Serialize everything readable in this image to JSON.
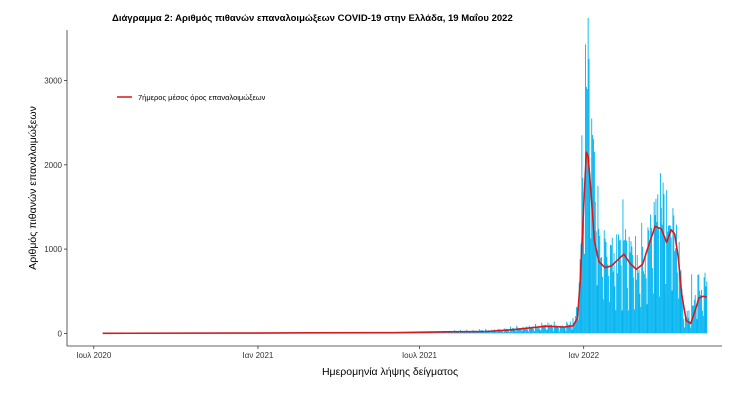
{
  "chart_data": {
    "type": "bar",
    "title": "Διάγραμμα 2: Αριθμός πιθανών επαναλοιμώξεων COVID-19 στην Ελλάδα, 19 Μαΐου 2022",
    "xlabel": "Ημερομηνία λήψης δείγματος",
    "ylabel": "Αριθμός πιθανών επαναλοιμώξεων",
    "x_ticks": [
      {
        "date": "2020-07-01",
        "label": "Ιουλ 2020"
      },
      {
        "date": "2021-01-01",
        "label": "Ιαν 2021"
      },
      {
        "date": "2021-07-01",
        "label": "Ιουλ 2021"
      },
      {
        "date": "2022-01-01",
        "label": "Ιαν 2022"
      }
    ],
    "y_ticks": [
      0,
      1000,
      2000,
      3000
    ],
    "xlim": [
      "2020-06-01",
      "2022-06-05"
    ],
    "ylim": [
      -150,
      3600
    ],
    "grid": false,
    "legend": {
      "position": "top-left",
      "entries": [
        {
          "label": "7ήμερος μέσος όρος επαναλοιμώξεων",
          "color": "#d7191c"
        }
      ]
    },
    "series": [
      {
        "mark": "bar",
        "color": "#00b4f0",
        "x_start": "2020-07-11",
        "x_end": "2022-05-19",
        "anchors": [
          [
            "2020-07-11",
            1
          ],
          [
            "2020-10-01",
            3
          ],
          [
            "2021-01-01",
            5
          ],
          [
            "2021-03-15",
            10
          ],
          [
            "2021-05-01",
            8
          ],
          [
            "2021-07-01",
            12
          ],
          [
            "2021-08-15",
            25
          ],
          [
            "2021-10-01",
            40
          ],
          [
            "2021-11-01",
            70
          ],
          [
            "2021-11-25",
            90
          ],
          [
            "2021-12-10",
            80
          ],
          [
            "2021-12-22",
            150
          ],
          [
            "2021-12-27",
            600
          ],
          [
            "2021-12-30",
            1400
          ],
          [
            "2022-01-02",
            2400
          ],
          [
            "2022-01-06",
            3100
          ],
          [
            "2022-01-10",
            2500
          ],
          [
            "2022-01-14",
            1600
          ],
          [
            "2022-01-20",
            1100
          ],
          [
            "2022-01-28",
            900
          ],
          [
            "2022-02-08",
            950
          ],
          [
            "2022-02-18",
            1050
          ],
          [
            "2022-02-28",
            800
          ],
          [
            "2022-03-10",
            900
          ],
          [
            "2022-03-22",
            1350
          ],
          [
            "2022-03-30",
            1500
          ],
          [
            "2022-04-05",
            1300
          ],
          [
            "2022-04-10",
            1450
          ],
          [
            "2022-04-18",
            900
          ],
          [
            "2022-04-24",
            200
          ],
          [
            "2022-05-01",
            250
          ],
          [
            "2022-05-07",
            450
          ],
          [
            "2022-05-19",
            500
          ]
        ],
        "highlights": [
          [
            "2021-12-30",
            2350
          ],
          [
            "2022-01-03",
            3430
          ],
          [
            "2022-01-05",
            2900
          ],
          [
            "2022-01-10",
            2550
          ],
          [
            "2022-02-15",
            1100
          ],
          [
            "2022-03-25",
            1650
          ],
          [
            "2022-03-28",
            1900
          ],
          [
            "2022-04-04",
            1700
          ],
          [
            "2022-04-12",
            1400
          ],
          [
            "2022-05-02",
            700
          ],
          [
            "2022-05-10",
            700
          ],
          [
            "2022-05-17",
            720
          ]
        ]
      },
      {
        "name": "7ήμερος μέσος όρος επαναλοιμώξεων",
        "mark": "line",
        "color": "#d7191c",
        "points": [
          [
            "2020-07-11",
            1
          ],
          [
            "2020-12-01",
            3
          ],
          [
            "2021-03-01",
            6
          ],
          [
            "2021-06-01",
            8
          ],
          [
            "2021-08-01",
            18
          ],
          [
            "2021-09-15",
            22
          ],
          [
            "2021-10-15",
            45
          ],
          [
            "2021-11-20",
            85
          ],
          [
            "2021-12-10",
            75
          ],
          [
            "2021-12-20",
            90
          ],
          [
            "2021-12-25",
            180
          ],
          [
            "2021-12-28",
            600
          ],
          [
            "2022-01-01",
            1500
          ],
          [
            "2022-01-04",
            2150
          ],
          [
            "2022-01-06",
            2100
          ],
          [
            "2022-01-09",
            1700
          ],
          [
            "2022-01-13",
            1100
          ],
          [
            "2022-01-18",
            850
          ],
          [
            "2022-01-25",
            780
          ],
          [
            "2022-02-01",
            800
          ],
          [
            "2022-02-08",
            870
          ],
          [
            "2022-02-15",
            940
          ],
          [
            "2022-02-22",
            830
          ],
          [
            "2022-03-01",
            760
          ],
          [
            "2022-03-08",
            820
          ],
          [
            "2022-03-15",
            1050
          ],
          [
            "2022-03-22",
            1270
          ],
          [
            "2022-03-29",
            1240
          ],
          [
            "2022-04-04",
            1080
          ],
          [
            "2022-04-09",
            1230
          ],
          [
            "2022-04-13",
            1180
          ],
          [
            "2022-04-17",
            900
          ],
          [
            "2022-04-21",
            450
          ],
          [
            "2022-04-26",
            150
          ],
          [
            "2022-05-01",
            120
          ],
          [
            "2022-05-06",
            270
          ],
          [
            "2022-05-10",
            420
          ],
          [
            "2022-05-15",
            440
          ],
          [
            "2022-05-19",
            430
          ]
        ]
      }
    ]
  }
}
